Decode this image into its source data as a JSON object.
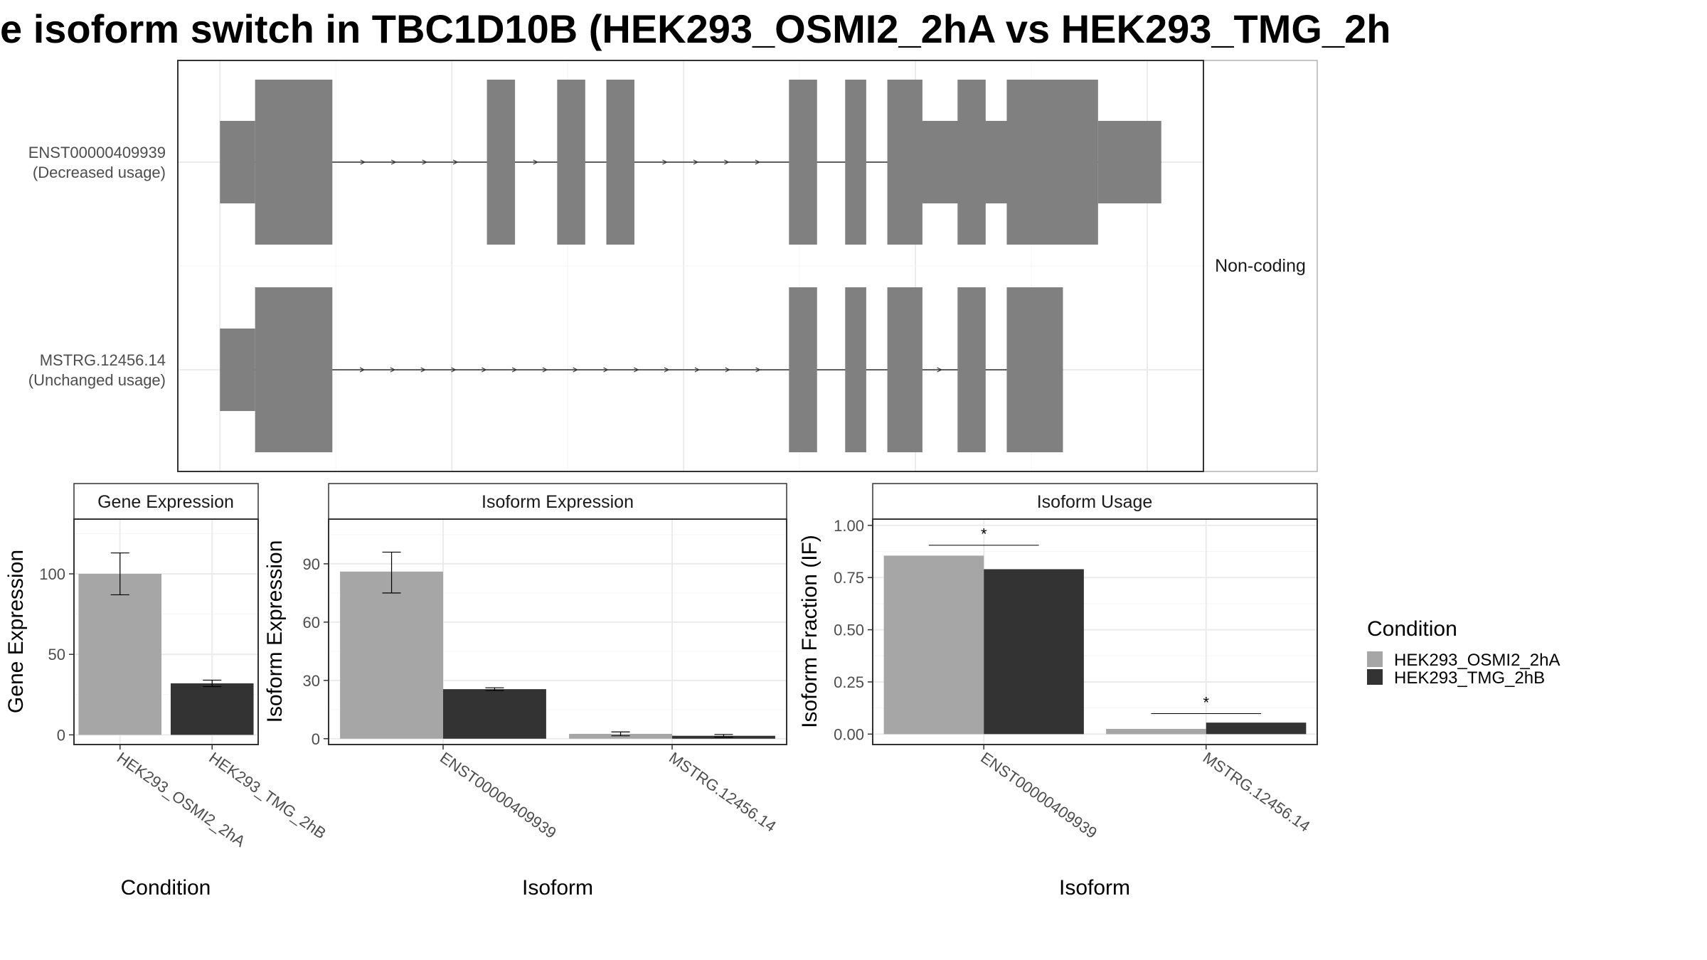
{
  "title": "e isoform switch in TBC1D10B (HEK293_OSMI2_2hA vs HEK293_TMG_2h",
  "colors": {
    "cond_a": "#a6a6a6",
    "cond_b": "#333333",
    "exon": "#808080",
    "grid": "#ebebeb",
    "strip_bg": "#ffffff"
  },
  "chart_data": [
    {
      "panel": "transcript-structure",
      "type": "other",
      "facet_label": "Non-coding",
      "grid": true,
      "transcripts": [
        {
          "label": "ENST00000409939\n(Decreased usage)",
          "utr": [
            [
              0,
              5
            ],
            [
              99,
              114
            ]
          ],
          "exons": [
            [
              5,
              16
            ],
            [
              38,
              42
            ],
            [
              48,
              52
            ],
            [
              55,
              59
            ],
            [
              81,
              85
            ],
            [
              89,
              92
            ],
            [
              95,
              100
            ],
            [
              105,
              109
            ],
            [
              112,
              125
            ]
          ],
          "utr_end": [
            [
              125,
              134
            ]
          ]
        },
        {
          "label": "MSTRG.12456.14\n(Unchanged usage)",
          "utr": [
            [
              0,
              5
            ]
          ],
          "exons": [
            [
              5,
              16
            ],
            [
              81,
              85
            ],
            [
              89,
              92
            ],
            [
              95,
              100
            ],
            [
              105,
              109
            ],
            [
              112,
              120
            ]
          ]
        }
      ]
    },
    {
      "panel": "gene-expression",
      "type": "bar",
      "strip": "Gene Expression",
      "categories": [
        "HEK293_OSMI2_2hA",
        "HEK293_TMG_2hB"
      ],
      "values": [
        100,
        32
      ],
      "errors": [
        [
          87,
          113
        ],
        [
          30,
          34
        ]
      ],
      "ylabel": "Gene Expression",
      "xlabel": "Condition",
      "yticks": [
        0,
        50,
        100
      ],
      "ylim": [
        -6,
        134
      ],
      "grid": true
    },
    {
      "panel": "isoform-expression",
      "type": "bar",
      "strip": "Isoform Expression",
      "categories": [
        "ENST00000409939",
        "MSTRG.12456.14"
      ],
      "series": [
        {
          "name": "HEK293_OSMI2_2hA",
          "values": [
            86,
            2.5
          ],
          "errors": [
            [
              75,
              96
            ],
            [
              1.5,
              3.5
            ]
          ]
        },
        {
          "name": "HEK293_TMG_2hB",
          "values": [
            25.5,
            1.5
          ],
          "errors": [
            [
              24.8,
              26.2
            ],
            [
              0.8,
              2.2
            ]
          ]
        }
      ],
      "ylabel": "Isoform Expression",
      "xlabel": "Isoform",
      "yticks": [
        0,
        30,
        60,
        90
      ],
      "ylim": [
        -3,
        113
      ],
      "grid": true
    },
    {
      "panel": "isoform-usage",
      "type": "bar",
      "strip": "Isoform Usage",
      "categories": [
        "ENST00000409939",
        "MSTRG.12456.14"
      ],
      "series": [
        {
          "name": "HEK293_OSMI2_2hA",
          "values": [
            0.855,
            0.025
          ]
        },
        {
          "name": "HEK293_TMG_2hB",
          "values": [
            0.79,
            0.055
          ]
        }
      ],
      "significance": [
        "*",
        "*"
      ],
      "ylabel": "Isoform Fraction (IF)",
      "xlabel": "Isoform",
      "yticks": [
        0,
        0.25,
        0.5,
        0.75,
        1.0
      ],
      "ytick_labels": [
        "0.00",
        "0.25",
        "0.50",
        "0.75",
        "1.00"
      ],
      "ylim": [
        -0.05,
        1.03
      ],
      "grid": true
    }
  ],
  "legend": {
    "title": "Condition",
    "items": [
      "HEK293_OSMI2_2hA",
      "HEK293_TMG_2hB"
    ],
    "placement": "right"
  }
}
